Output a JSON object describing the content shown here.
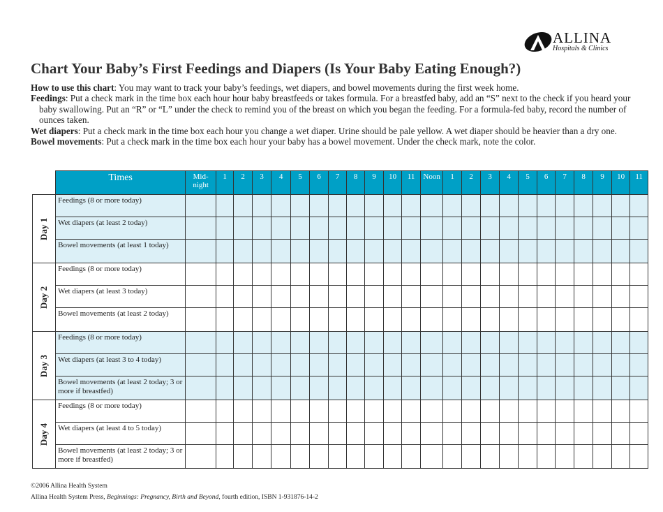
{
  "logo": {
    "name": "ALLINA",
    "sub": "Hospitals & Clinics"
  },
  "title": "Chart Your Baby’s First Feedings and Diapers (Is Your Baby Eating Enough?)",
  "intro": [
    {
      "label": "How to use this chart",
      "text": ": You may want to track your baby’s feedings, wet diapers, and bowel movements during the first week home."
    },
    {
      "label": "Feedings",
      "text": ": Put a check mark in the time box each hour hour baby breastfeeds or takes formula. For a breastfed baby, add an “S” next to the check if you heard your baby swallowing. Put an “R” or “L” under the check to remind you of the breast on which you began the feeding. For a formula-fed baby, record the number of ounces taken."
    },
    {
      "label": "Wet diapers",
      "text": ": Put a check mark in the time box each hour you change a wet diaper. Urine should be pale yellow. A wet diaper should be heavier than a dry one."
    },
    {
      "label": "Bowel movements",
      "text": ": Put a check mark in the time box each hour your baby has a bowel movement. Under the check mark, note the color."
    }
  ],
  "table": {
    "times_label": "Times",
    "hours": [
      "Mid-night",
      "1",
      "2",
      "3",
      "4",
      "5",
      "6",
      "7",
      "8",
      "9",
      "10",
      "11",
      "Noon",
      "1",
      "2",
      "3",
      "4",
      "5",
      "6",
      "7",
      "8",
      "9",
      "10",
      "11"
    ],
    "days": [
      {
        "label": "Day 1",
        "rows": [
          "Feedings (8 or more today)",
          "Wet diapers (at least 2 today)",
          "Bowel movements (at least 1 today)"
        ]
      },
      {
        "label": "Day 2",
        "rows": [
          "Feedings (8 or more today)",
          "Wet diapers (at least 3 today)",
          "Bowel movements (at least 2 today)"
        ]
      },
      {
        "label": "Day 3",
        "rows": [
          "Feedings (8 or more today)",
          "Wet diapers (at least 3 to 4 today)",
          "Bowel movements (at least 2 today; 3 or more if breastfed)"
        ]
      },
      {
        "label": "Day 4",
        "rows": [
          "Feedings (8 or more today)",
          "Wet diapers (at least 4 to 5 today)",
          "Bowel movements (at least 2 today; 3 or more if breastfed)"
        ]
      }
    ]
  },
  "footer": {
    "copyright": "©2006 Allina Health System",
    "press": "Allina Health System Press, ",
    "book": "Beginnings: Pregnancy, Birth and Beyond",
    "edition": ", fourth edition, ISBN 1-931876-14-2"
  },
  "colors": {
    "header": "#00a0c6",
    "shade": "#dcf0f7"
  }
}
